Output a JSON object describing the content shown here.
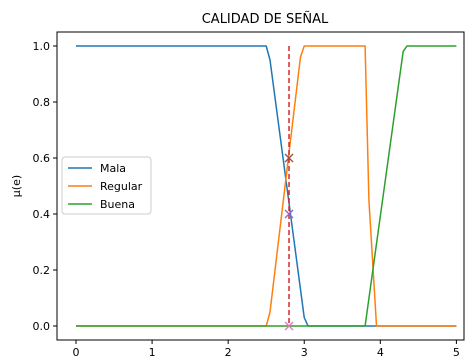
{
  "chart_data": {
    "type": "line",
    "title": "CALIDAD DE SEÑAL",
    "xlabel": "",
    "ylabel": "μ(e)",
    "xlim": [
      -0.25,
      5.1
    ],
    "ylim": [
      -0.05,
      1.05
    ],
    "xticks": [
      0,
      1,
      2,
      3,
      4,
      5
    ],
    "yticks": [
      0.0,
      0.2,
      0.4,
      0.6,
      0.8,
      1.0
    ],
    "xtick_labels": [
      "0",
      "1",
      "2",
      "3",
      "4",
      "5"
    ],
    "ytick_labels": [
      "0.0",
      "0.2",
      "0.4",
      "0.6",
      "0.8",
      "1.0"
    ],
    "grid": false,
    "legend_position": "center-left",
    "series": [
      {
        "name": "Mala",
        "color": "#1f77b4",
        "x": [
          0,
          2.5,
          2.55,
          3.0,
          3.05,
          5
        ],
        "y": [
          1.0,
          1.0,
          0.95,
          0.03,
          0.0,
          0.0
        ]
      },
      {
        "name": "Regular",
        "color": "#ff7f0e",
        "x": [
          0,
          2.5,
          2.55,
          2.95,
          3.0,
          3.8,
          3.85,
          3.95,
          5
        ],
        "y": [
          0.0,
          0.0,
          0.05,
          0.96,
          1.0,
          1.0,
          0.45,
          0.0,
          0.0
        ]
      },
      {
        "name": "Buena",
        "color": "#2ca02c",
        "x": [
          0,
          3.8,
          4.3,
          4.35,
          5
        ],
        "y": [
          0.0,
          0.0,
          0.98,
          1.0,
          1.0
        ]
      }
    ],
    "vline": {
      "x": 2.8,
      "color": "#d62728",
      "style": "dashed"
    },
    "markers": [
      {
        "x": 2.8,
        "y": 0.6,
        "color": "#8c564b",
        "symbol": "x"
      },
      {
        "x": 2.8,
        "y": 0.4,
        "color": "#9467bd",
        "symbol": "x"
      },
      {
        "x": 2.8,
        "y": 0.0,
        "color": "#e377c2",
        "symbol": "x"
      }
    ]
  }
}
